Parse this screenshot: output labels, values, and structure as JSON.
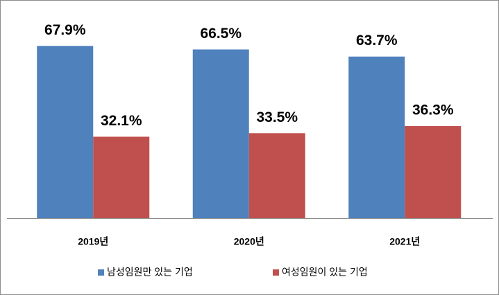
{
  "chart_data": {
    "type": "bar",
    "categories": [
      "2019년",
      "2020년",
      "2021년"
    ],
    "series": [
      {
        "name": "남성임원만 있는 기업",
        "color": "#4f81bd",
        "values": [
          67.9,
          66.5,
          63.7
        ],
        "value_labels": [
          "67.9%",
          "66.5%",
          "63.7%"
        ]
      },
      {
        "name": "여성임원이 있는 기업",
        "color": "#c0504d",
        "values": [
          32.1,
          33.5,
          36.3
        ],
        "value_labels": [
          "32.1%",
          "33.5%",
          "36.3%"
        ]
      }
    ],
    "ylim": [
      0,
      80
    ],
    "legend": "bottom"
  }
}
